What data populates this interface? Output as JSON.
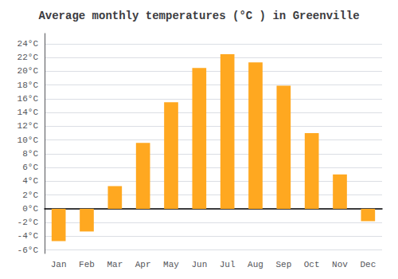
{
  "chart_data": {
    "type": "bar",
    "title": "Average monthly temperatures (°C ) in Greenville",
    "categories": [
      "Jan",
      "Feb",
      "Mar",
      "Apr",
      "May",
      "Jun",
      "Jul",
      "Aug",
      "Sep",
      "Oct",
      "Nov",
      "Dec"
    ],
    "values": [
      -4.7,
      -3.3,
      3.3,
      9.6,
      15.5,
      20.5,
      22.5,
      21.3,
      17.9,
      11.0,
      5.0,
      -1.8
    ],
    "color": "#FFA820",
    "ylim": [
      -6.5,
      25.5
    ],
    "yticks": [
      {
        "value": -6,
        "label": "-6°C"
      },
      {
        "value": -4,
        "label": "-4°C"
      },
      {
        "value": -2,
        "label": "-2°C"
      },
      {
        "value": 0,
        "label": "0°C"
      },
      {
        "value": 2,
        "label": "2°C"
      },
      {
        "value": 4,
        "label": "4°C"
      },
      {
        "value": 6,
        "label": "6°C"
      },
      {
        "value": 8,
        "label": "8°C"
      },
      {
        "value": 10,
        "label": "10°C"
      },
      {
        "value": 12,
        "label": "12°C"
      },
      {
        "value": 14,
        "label": "14°C"
      },
      {
        "value": 16,
        "label": "16°C"
      },
      {
        "value": 18,
        "label": "18°C"
      },
      {
        "value": 20,
        "label": "20°C"
      },
      {
        "value": 22,
        "label": "22°C"
      },
      {
        "value": 24,
        "label": "24°C"
      }
    ],
    "grid": true
  }
}
